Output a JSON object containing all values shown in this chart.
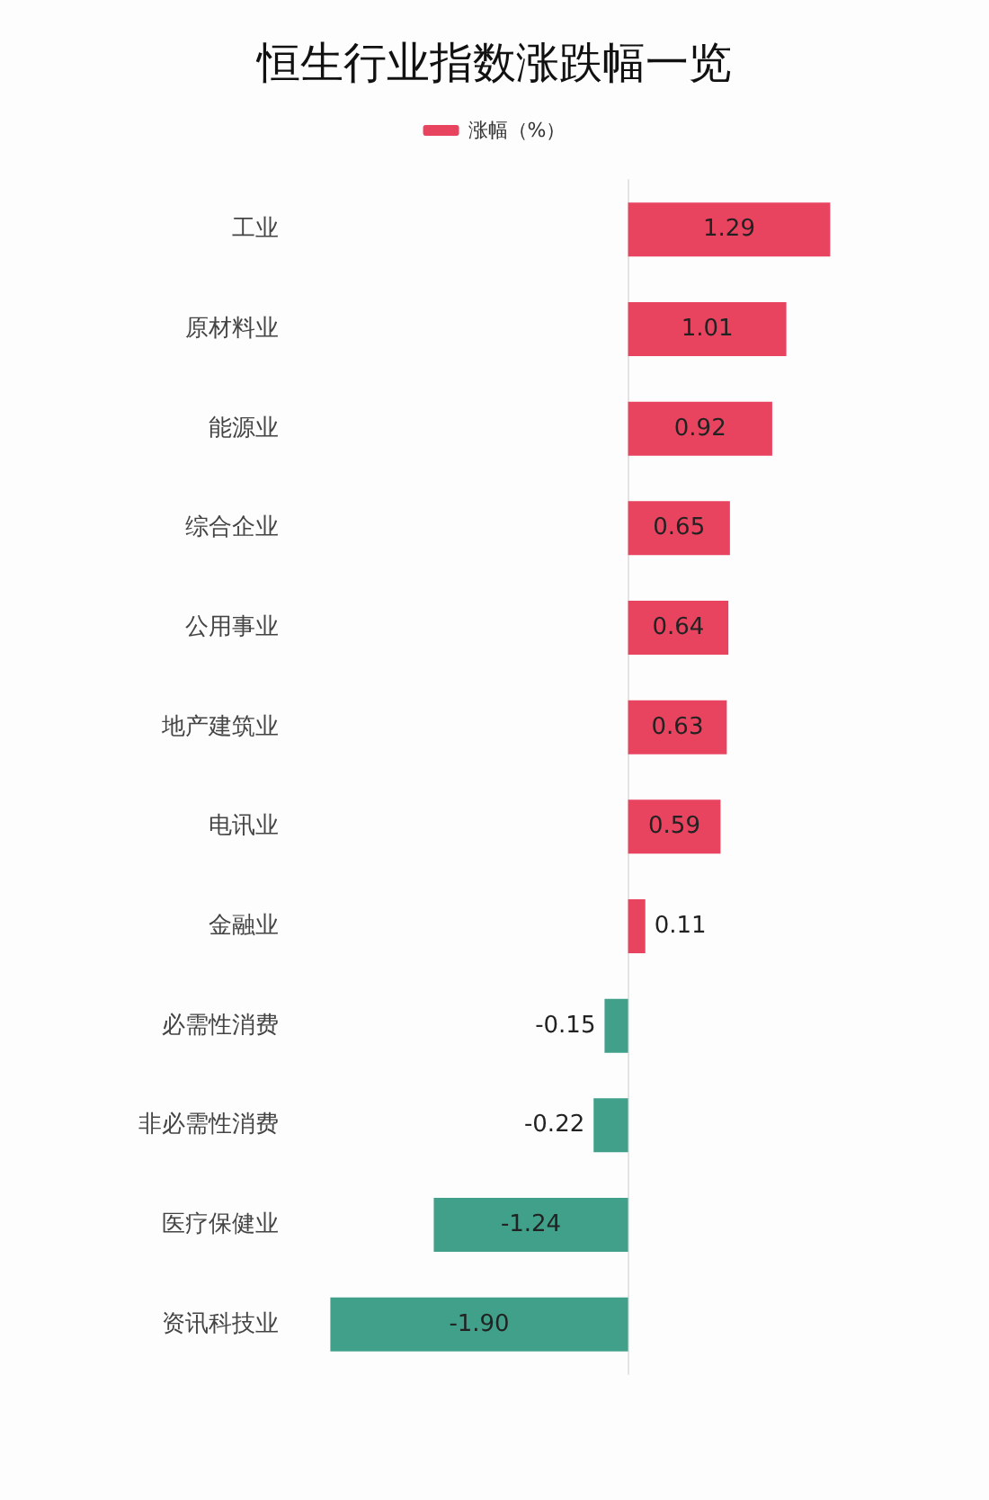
{
  "chart_data": {
    "type": "bar",
    "orientation": "horizontal",
    "title": "恒生行业指数涨跌幅一览",
    "categories": [
      "工业",
      "原材料业",
      "能源业",
      "综合企业",
      "公用事业",
      "地产建筑业",
      "电讯业",
      "金融业",
      "必需性消费",
      "非必需性消费",
      "医疗保健业",
      "资讯科技业"
    ],
    "series": [
      {
        "name": "涨幅（%）",
        "color": "#e8445f",
        "colors": [
          "#e8445f",
          "#e8445f",
          "#e8445f",
          "#e8445f",
          "#e8445f",
          "#e8445f",
          "#e8445f",
          "#e8445f",
          "#40a08a",
          "#40a08a",
          "#40a08a",
          "#40a08a"
        ],
        "values": [
          1.29,
          1.01,
          0.92,
          0.65,
          0.64,
          0.63,
          0.59,
          0.11,
          -0.15,
          -0.22,
          -1.24,
          -1.9
        ],
        "value_labels": [
          "1.29",
          "1.01",
          "0.92",
          "0.65",
          "0.64",
          "0.63",
          "0.59",
          "0.11",
          "-0.15",
          "-0.22",
          "-1.24",
          "-1.90"
        ]
      }
    ],
    "legend": "top",
    "grid": false,
    "tick_labels": "y"
  }
}
